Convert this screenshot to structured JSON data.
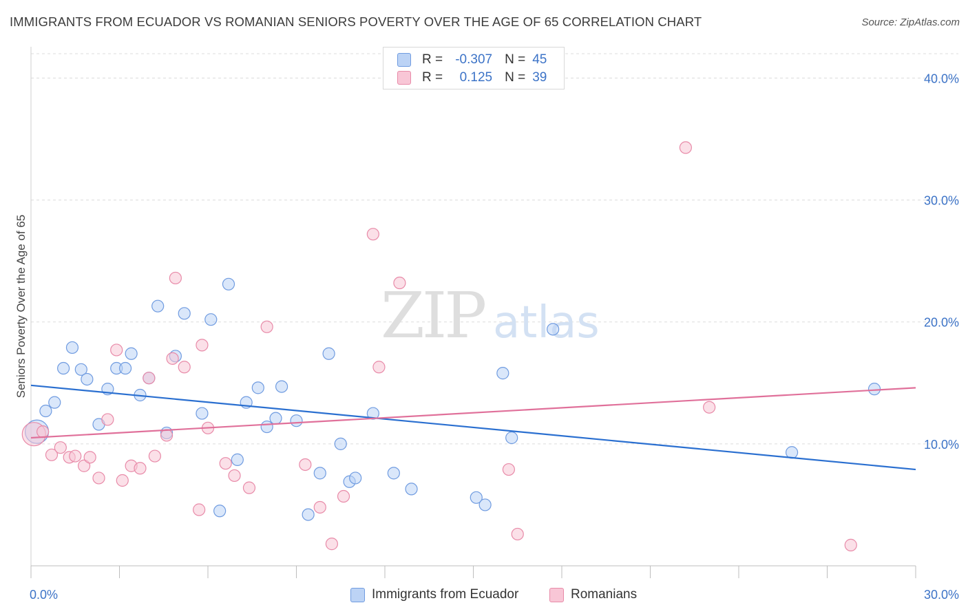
{
  "title": "IMMIGRANTS FROM ECUADOR VS ROMANIAN SENIORS POVERTY OVER THE AGE OF 65 CORRELATION CHART",
  "source": "Source: ZipAtlas.com",
  "watermark": {
    "zip": "ZIP",
    "atlas": "atlas"
  },
  "legend": {
    "series": [
      {
        "r_label": "R =",
        "r_value": "-0.307",
        "n_label": "N =",
        "n_value": "45"
      },
      {
        "r_label": "R =",
        "r_value": "0.125",
        "n_label": "N =",
        "n_value": "39"
      }
    ]
  },
  "colors": {
    "blue_fill": "#bcd3f5",
    "blue_stroke": "#6f9be0",
    "blue_line": "#2a6fd0",
    "pink_fill": "#f8c6d6",
    "pink_stroke": "#e88aa8",
    "pink_line": "#e0709a",
    "axis_label": "#3c73c7",
    "grid": "#dcdcdc"
  },
  "chart_data": {
    "type": "scatter",
    "ylabel": "Seniors Poverty Over the Age of 65",
    "xlabel": "",
    "xlim": [
      0,
      30
    ],
    "ylim": [
      0,
      42
    ],
    "x_tick_labels": [
      "0.0%",
      "30.0%"
    ],
    "y_ticks": [
      {
        "value": 10,
        "label": "10.0%"
      },
      {
        "value": 20,
        "label": "20.0%"
      },
      {
        "value": 30,
        "label": "30.0%"
      },
      {
        "value": 40,
        "label": "40.0%"
      }
    ],
    "grid": true,
    "legend_position": "bottom-center",
    "series": [
      {
        "name": "Immigrants from Ecuador",
        "color": "blue",
        "trend": {
          "x": [
            0,
            30
          ],
          "y": [
            14.8,
            7.9
          ]
        },
        "points": [
          {
            "x": 0.2,
            "y": 11.0,
            "big": true
          },
          {
            "x": 0.5,
            "y": 12.7
          },
          {
            "x": 0.8,
            "y": 13.4
          },
          {
            "x": 1.1,
            "y": 16.2
          },
          {
            "x": 1.4,
            "y": 17.9
          },
          {
            "x": 1.7,
            "y": 16.1
          },
          {
            "x": 1.9,
            "y": 15.3
          },
          {
            "x": 2.3,
            "y": 11.6
          },
          {
            "x": 2.6,
            "y": 14.5
          },
          {
            "x": 2.9,
            "y": 16.2
          },
          {
            "x": 3.2,
            "y": 16.2
          },
          {
            "x": 3.4,
            "y": 17.4
          },
          {
            "x": 3.7,
            "y": 14.0
          },
          {
            "x": 4.0,
            "y": 15.4
          },
          {
            "x": 4.3,
            "y": 21.3
          },
          {
            "x": 4.6,
            "y": 10.9
          },
          {
            "x": 4.9,
            "y": 17.2
          },
          {
            "x": 5.2,
            "y": 20.7
          },
          {
            "x": 5.8,
            "y": 12.5
          },
          {
            "x": 6.1,
            "y": 20.2
          },
          {
            "x": 6.4,
            "y": 4.5
          },
          {
            "x": 6.7,
            "y": 23.1
          },
          {
            "x": 7.0,
            "y": 8.7
          },
          {
            "x": 7.3,
            "y": 13.4
          },
          {
            "x": 7.7,
            "y": 14.6
          },
          {
            "x": 8.0,
            "y": 11.4
          },
          {
            "x": 8.3,
            "y": 12.1
          },
          {
            "x": 8.5,
            "y": 14.7
          },
          {
            "x": 9.0,
            "y": 11.9
          },
          {
            "x": 9.4,
            "y": 4.2
          },
          {
            "x": 9.8,
            "y": 7.6
          },
          {
            "x": 10.1,
            "y": 17.4
          },
          {
            "x": 10.5,
            "y": 10.0
          },
          {
            "x": 10.8,
            "y": 6.9
          },
          {
            "x": 11.0,
            "y": 7.2
          },
          {
            "x": 11.6,
            "y": 12.5
          },
          {
            "x": 12.3,
            "y": 7.6
          },
          {
            "x": 12.9,
            "y": 6.3
          },
          {
            "x": 15.1,
            "y": 5.6
          },
          {
            "x": 15.4,
            "y": 5.0
          },
          {
            "x": 16.0,
            "y": 15.8
          },
          {
            "x": 16.3,
            "y": 10.5
          },
          {
            "x": 17.7,
            "y": 19.4
          },
          {
            "x": 25.8,
            "y": 9.3
          },
          {
            "x": 28.6,
            "y": 14.5
          }
        ]
      },
      {
        "name": "Romanians",
        "color": "pink",
        "trend": {
          "x": [
            0,
            30
          ],
          "y": [
            10.5,
            14.6
          ]
        },
        "points": [
          {
            "x": 0.1,
            "y": 10.8,
            "big": true
          },
          {
            "x": 0.4,
            "y": 11.0
          },
          {
            "x": 0.7,
            "y": 9.1
          },
          {
            "x": 1.0,
            "y": 9.7
          },
          {
            "x": 1.3,
            "y": 8.9
          },
          {
            "x": 1.5,
            "y": 9.0
          },
          {
            "x": 1.8,
            "y": 8.2
          },
          {
            "x": 2.0,
            "y": 8.9
          },
          {
            "x": 2.3,
            "y": 7.2
          },
          {
            "x": 2.6,
            "y": 12.0
          },
          {
            "x": 2.9,
            "y": 17.7
          },
          {
            "x": 3.1,
            "y": 7.0
          },
          {
            "x": 3.4,
            "y": 8.2
          },
          {
            "x": 3.7,
            "y": 8.0
          },
          {
            "x": 4.0,
            "y": 15.4
          },
          {
            "x": 4.2,
            "y": 9.0
          },
          {
            "x": 4.6,
            "y": 10.7
          },
          {
            "x": 4.8,
            "y": 17.0
          },
          {
            "x": 4.9,
            "y": 23.6
          },
          {
            "x": 5.2,
            "y": 16.3
          },
          {
            "x": 5.7,
            "y": 4.6
          },
          {
            "x": 5.8,
            "y": 18.1
          },
          {
            "x": 6.0,
            "y": 11.3
          },
          {
            "x": 6.6,
            "y": 8.4
          },
          {
            "x": 6.9,
            "y": 7.4
          },
          {
            "x": 7.4,
            "y": 6.4
          },
          {
            "x": 8.0,
            "y": 19.6
          },
          {
            "x": 9.3,
            "y": 8.3
          },
          {
            "x": 9.8,
            "y": 4.8
          },
          {
            "x": 10.2,
            "y": 1.8
          },
          {
            "x": 10.6,
            "y": 5.7
          },
          {
            "x": 11.6,
            "y": 27.2
          },
          {
            "x": 11.8,
            "y": 16.3
          },
          {
            "x": 12.5,
            "y": 23.2
          },
          {
            "x": 16.2,
            "y": 7.9
          },
          {
            "x": 16.5,
            "y": 2.6
          },
          {
            "x": 22.2,
            "y": 34.3
          },
          {
            "x": 23.0,
            "y": 13.0
          },
          {
            "x": 27.8,
            "y": 1.7
          }
        ]
      }
    ]
  }
}
